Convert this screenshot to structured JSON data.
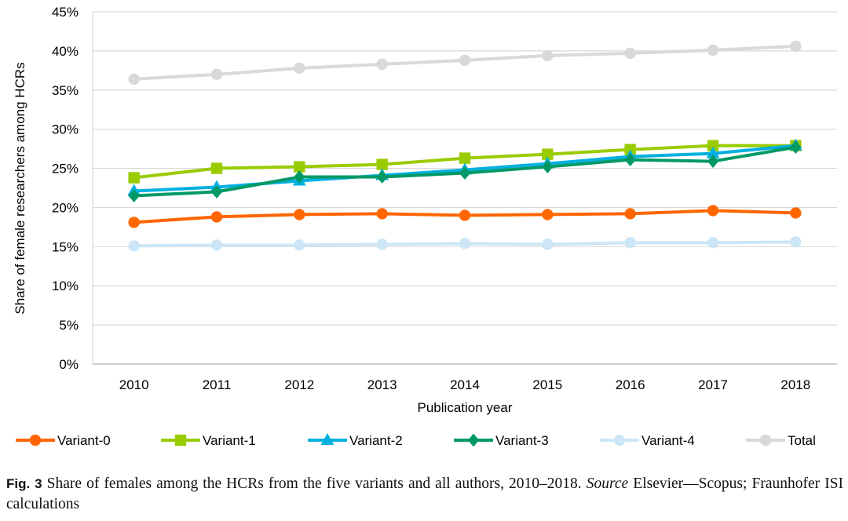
{
  "chart_data": {
    "type": "line",
    "x": [
      2010,
      2011,
      2012,
      2013,
      2014,
      2015,
      2016,
      2017,
      2018
    ],
    "ylabel": "Share of female researchers among HCRs",
    "xlabel": "Publication year",
    "ylim": [
      0,
      45
    ],
    "yticks": [
      "0%",
      "5%",
      "10%",
      "15%",
      "20%",
      "25%",
      "30%",
      "35%",
      "40%",
      "45%"
    ],
    "xticks": [
      "2010",
      "2011",
      "2012",
      "2013",
      "2014",
      "2015",
      "2016",
      "2017",
      "2018"
    ],
    "grid": "horizontal",
    "legend": "bottom",
    "series": [
      {
        "name": "Variant-0",
        "color": "#ff6600",
        "marker": "circle",
        "values": [
          18.1,
          18.8,
          19.1,
          19.2,
          19.0,
          19.1,
          19.2,
          19.6,
          19.3
        ]
      },
      {
        "name": "Variant-1",
        "color": "#99cc00",
        "marker": "square",
        "values": [
          23.8,
          25.0,
          25.2,
          25.5,
          26.3,
          26.8,
          27.4,
          27.9,
          27.9
        ]
      },
      {
        "name": "Variant-2",
        "color": "#00b0e0",
        "marker": "triangle",
        "values": [
          22.1,
          22.6,
          23.4,
          24.1,
          24.8,
          25.6,
          26.5,
          26.9,
          27.9
        ]
      },
      {
        "name": "Variant-3",
        "color": "#009966",
        "marker": "diamond",
        "values": [
          21.5,
          22.0,
          23.9,
          23.9,
          24.4,
          25.2,
          26.1,
          25.9,
          27.7
        ]
      },
      {
        "name": "Variant-4",
        "color": "#cce6f7",
        "marker": "circle",
        "values": [
          15.1,
          15.2,
          15.2,
          15.3,
          15.4,
          15.3,
          15.5,
          15.5,
          15.6
        ]
      },
      {
        "name": "Total",
        "color": "#d9d9d9",
        "marker": "circle",
        "values": [
          36.4,
          37.0,
          37.8,
          38.3,
          38.8,
          39.4,
          39.7,
          40.1,
          40.6
        ]
      }
    ]
  },
  "caption": {
    "label": "Fig. 3",
    "text": "Share of females among the HCRs from the five variants and all authors, 2010–2018.",
    "source_word": "Source",
    "source_text": "Elsevier—Scopus; Fraunhofer ISI calculations"
  }
}
